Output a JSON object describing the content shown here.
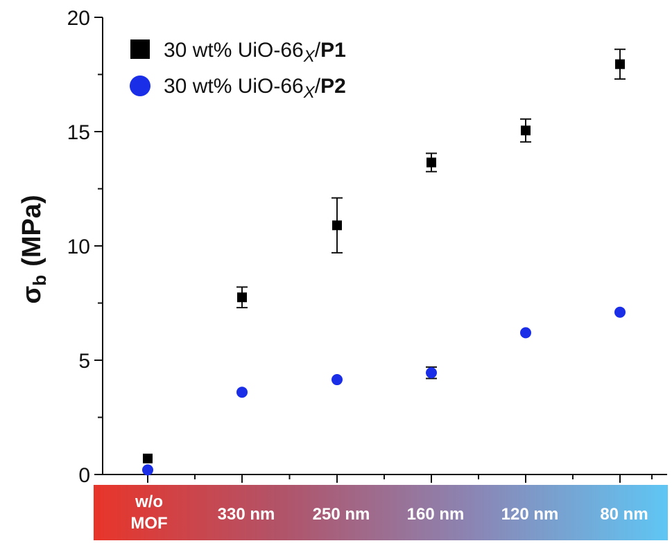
{
  "chart_data": {
    "type": "scatter",
    "categories": [
      "w/o MOF",
      "330 nm",
      "250 nm",
      "160 nm",
      "120 nm",
      "80 nm"
    ],
    "category_lines": [
      [
        "w/o",
        "MOF"
      ],
      [
        "330 nm"
      ],
      [
        "250 nm"
      ],
      [
        "160 nm"
      ],
      [
        "120 nm"
      ],
      [
        "80 nm"
      ]
    ],
    "ylabel_main": "σ",
    "ylabel_sub": "b",
    "ylabel_unit": "(MPa)",
    "ylim": [
      0,
      20
    ],
    "yticks": [
      0,
      5,
      10,
      15,
      20
    ],
    "series": [
      {
        "name": "30 wt% UiO-66X/P1",
        "legend_parts": {
          "prefix": "30 wt% UiO-66",
          "sub": "X",
          "sep": "/",
          "bold": "P1"
        },
        "marker": "square",
        "color": "#000000",
        "values": [
          0.7,
          7.75,
          10.9,
          13.65,
          15.05,
          17.95
        ],
        "errors": [
          0,
          0.45,
          1.2,
          0.4,
          0.5,
          0.65
        ]
      },
      {
        "name": "30 wt% UiO-66X/P2",
        "legend_parts": {
          "prefix": "30 wt% UiO-66",
          "sub": "X",
          "sep": "/",
          "bold": "P2"
        },
        "marker": "circle",
        "color": "#1a2ee8",
        "values": [
          0.2,
          3.6,
          4.15,
          4.45,
          6.2,
          7.1
        ],
        "errors": [
          0,
          0,
          0,
          0.25,
          0,
          0
        ]
      }
    ],
    "gradient_colors": [
      "#e8352a",
      "#b0546a",
      "#8a86b5",
      "#5fc6f4"
    ],
    "legend_position": "top-left",
    "grid": false
  }
}
